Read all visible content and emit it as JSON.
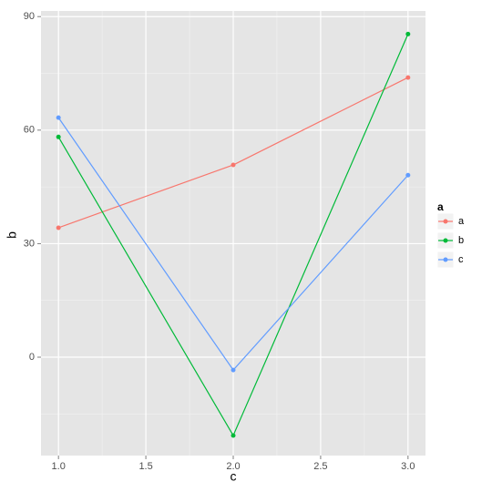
{
  "chart_data": {
    "type": "line",
    "x": [
      1,
      2,
      3
    ],
    "xlabel": "c",
    "ylabel": "b",
    "legend_title": "a",
    "series": [
      {
        "name": "a",
        "color": "#F8766D",
        "values": [
          34.2,
          50.8,
          73.9
        ]
      },
      {
        "name": "b",
        "color": "#00BA38",
        "values": [
          58.2,
          -20.7,
          85.4
        ]
      },
      {
        "name": "c",
        "color": "#619CFF",
        "values": [
          63.3,
          -3.4,
          48.1
        ]
      }
    ],
    "xlim": [
      0.9,
      3.1
    ],
    "xticks": [
      {
        "value": 1,
        "label": "1.0"
      },
      {
        "value": 1.5,
        "label": "1.5"
      },
      {
        "value": 2,
        "label": "2.0"
      },
      {
        "value": 2.5,
        "label": "2.5"
      },
      {
        "value": 3,
        "label": "3.0"
      }
    ],
    "ylim": [
      -26,
      91.5
    ],
    "yticks": [
      0,
      30,
      60,
      90
    ],
    "grid": true,
    "legend": "right"
  }
}
